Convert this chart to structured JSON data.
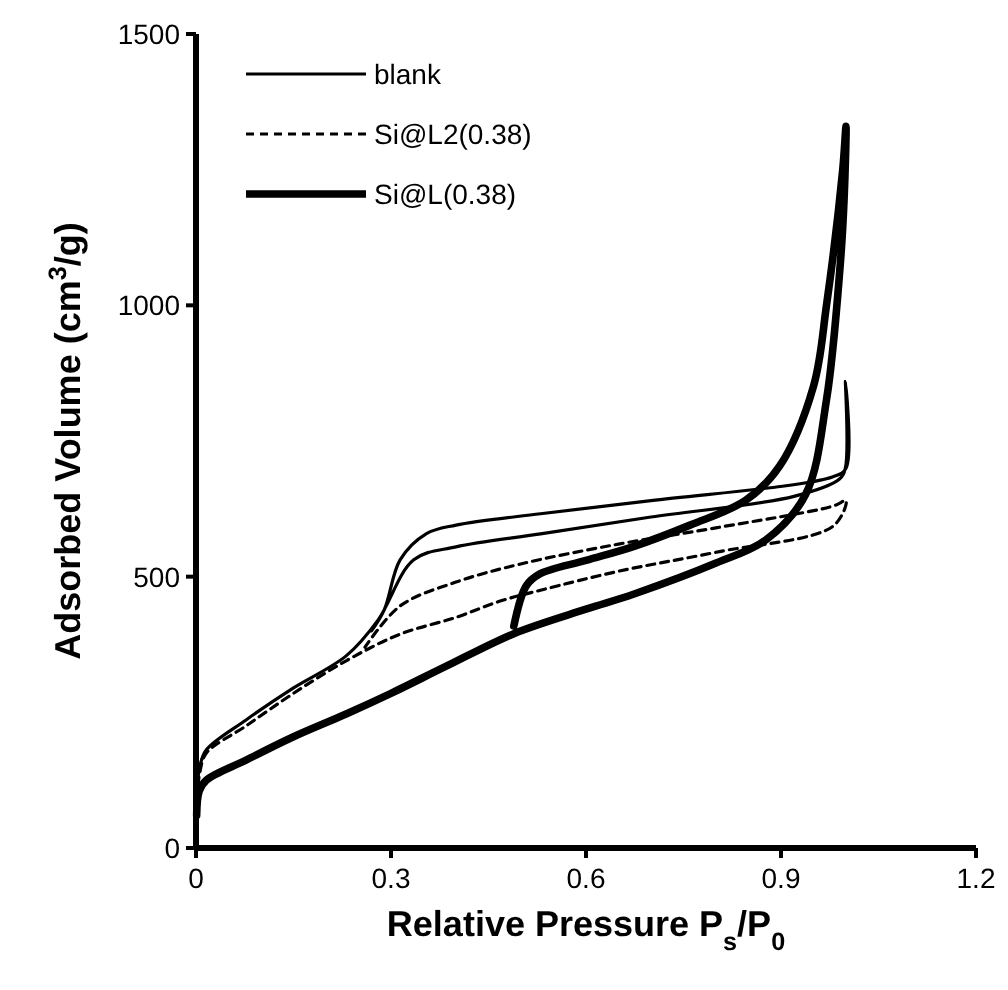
{
  "chart_data": {
    "type": "line",
    "xlabel": "Relative Pressure P$_{s}$/P$_{0}$",
    "ylabel": "Adsorbed Volume (cm$^{3}$/g)",
    "xlim": [
      0,
      1.2
    ],
    "ylim": [
      0,
      1500
    ],
    "xticks": [
      0,
      0.3,
      0.6,
      0.9,
      1.2
    ],
    "yticks": [
      0,
      500,
      1000,
      1500
    ],
    "grid": false,
    "legend": "top left",
    "series": [
      {
        "name": "blank",
        "color": "#000000",
        "line_style": "solid",
        "x": [
          0.001,
          0.006,
          0.016,
          0.077,
          0.15,
          0.231,
          0.28,
          0.335,
          0.4,
          0.53,
          0.7,
          0.92,
          0.99,
          0.999,
          0.999,
          1.0,
          0.98,
          0.7,
          0.53,
          0.4,
          0.354,
          0.314,
          0.29,
          0.27
        ],
        "values": [
          100,
          151,
          181,
          236,
          295,
          354,
          420,
          531,
          555,
          579,
          610,
          648,
          680,
          700,
          860,
          700,
          684,
          640,
          616,
          595,
          579,
          531,
          440,
          400
        ]
      },
      {
        "name": "Si@L2(0.38)",
        "color": "#000000",
        "line_style": "dashed",
        "x": [
          0.001,
          0.006,
          0.016,
          0.077,
          0.15,
          0.231,
          0.314,
          0.4,
          0.468,
          0.53,
          0.65,
          0.8,
          0.98,
          1.0,
          0.98,
          0.8,
          0.65,
          0.498,
          0.4,
          0.314,
          0.26
        ],
        "values": [
          90,
          140,
          175,
          225,
          285,
          345,
          394,
          425,
          455,
          475,
          510,
          545,
          593,
          640,
          630,
          590,
          560,
          523,
          490,
          446,
          370
        ]
      },
      {
        "name": "Si@L(0.38)",
        "color": "#000000",
        "line_style": "solid",
        "x": [
          0.001,
          0.005,
          0.016,
          0.077,
          0.15,
          0.231,
          0.3,
          0.385,
          0.489,
          0.6,
          0.674,
          0.8,
          0.877,
          0.938,
          0.97,
          0.991,
          0.997,
          1.0,
          0.995,
          0.97,
          0.95,
          0.898,
          0.846,
          0.76,
          0.674,
          0.6,
          0.529,
          0.508,
          0.489
        ],
        "values": [
          60,
          105,
          125,
          162,
          205,
          247,
          285,
          335,
          395,
          440,
          468,
          525,
          568,
          652,
          826,
          1073,
          1194,
          1330,
          1250,
          1000,
          851,
          704,
          641,
          595,
          556,
          530,
          505,
          483,
          409
        ]
      }
    ]
  }
}
